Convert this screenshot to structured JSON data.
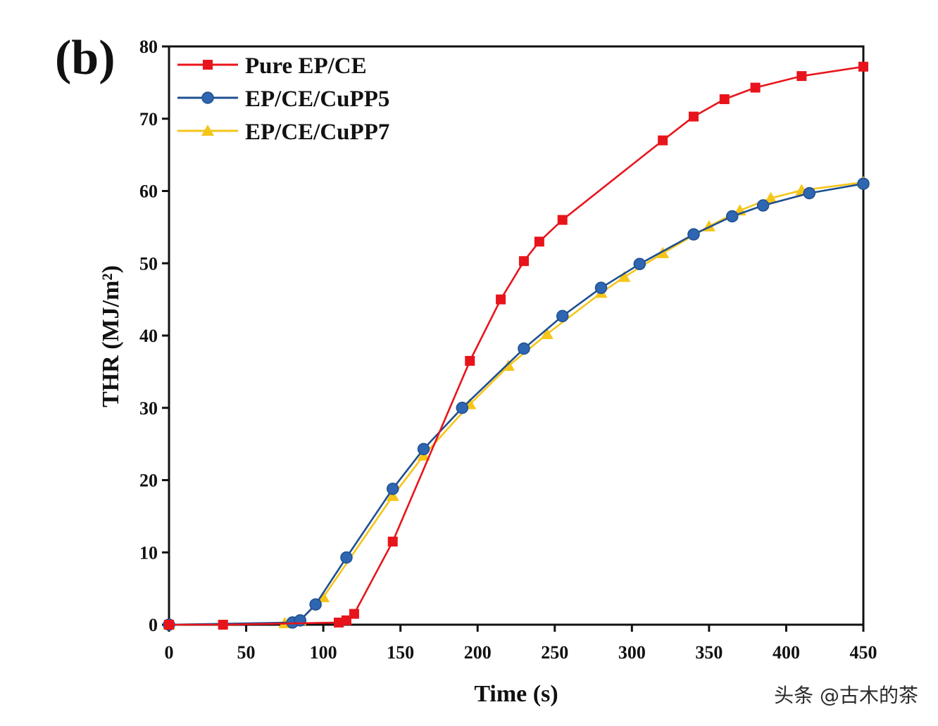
{
  "chart_data": {
    "type": "line",
    "panel_label": "(b)",
    "xlabel": "Time (s)",
    "ylabel": "THR (MJ/m²)",
    "xlim": [
      0,
      450
    ],
    "ylim": [
      0,
      80
    ],
    "xticks": [
      0,
      50,
      100,
      150,
      200,
      250,
      300,
      350,
      400,
      450
    ],
    "yticks": [
      0,
      10,
      20,
      30,
      40,
      50,
      60,
      70,
      80
    ],
    "legend_position": "top-left",
    "series": [
      {
        "name": "Pure EP/CE",
        "color": "#e8141b",
        "marker": "square",
        "x": [
          0,
          35,
          110,
          115,
          120,
          145,
          195,
          215,
          230,
          240,
          255,
          320,
          340,
          360,
          380,
          410,
          450
        ],
        "y": [
          0,
          0,
          0.3,
          0.6,
          1.5,
          11.5,
          36.5,
          45,
          50.3,
          53,
          56,
          67,
          70.3,
          72.7,
          74.3,
          75.9,
          77.2
        ]
      },
      {
        "name": "EP/CE/CuPP5",
        "color": "#1f4f8f",
        "marker": "circle",
        "x": [
          0,
          80,
          85,
          95,
          115,
          145,
          165,
          190,
          230,
          255,
          280,
          305,
          340,
          365,
          385,
          415,
          450
        ],
        "y": [
          0,
          0.3,
          0.6,
          2.8,
          9.3,
          18.8,
          24.3,
          30,
          38.2,
          42.7,
          46.6,
          49.9,
          54,
          56.5,
          58,
          59.7,
          61
        ]
      },
      {
        "name": "EP/CE/CuPP7",
        "color": "#f5c518",
        "marker": "triangle",
        "x": [
          0,
          75,
          85,
          100,
          145,
          165,
          195,
          220,
          245,
          280,
          295,
          320,
          350,
          370,
          390,
          410,
          450
        ],
        "y": [
          0,
          0.2,
          0.6,
          3.8,
          17.8,
          23.4,
          30.5,
          35.8,
          40.2,
          45.9,
          48.1,
          51.4,
          55.1,
          57.3,
          59,
          60.1,
          61.2
        ]
      }
    ]
  },
  "watermark": "头条 @古木的茶"
}
